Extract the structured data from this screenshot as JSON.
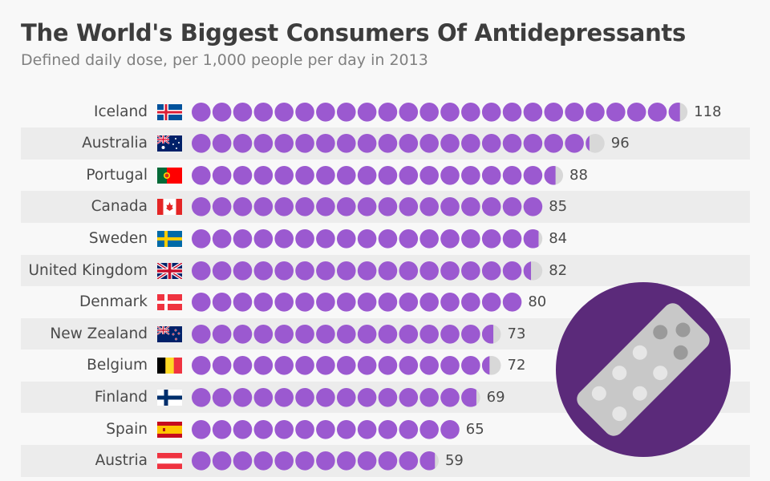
{
  "header": {
    "title": "The World's Biggest Consumers Of Antidepressants",
    "subtitle": "Defined daily dose, per 1,000 people per day in 2013"
  },
  "colors": {
    "dot": "#9b59d0",
    "dot_empty": "#d8d8d8",
    "badge": "#5b2a7a",
    "blister": "#c8c8c8",
    "row_shade": "#ececec"
  },
  "chart_data": {
    "type": "pictogram-bar",
    "title": "The World's Biggest Consumers Of Antidepressants",
    "subtitle": "Defined daily dose, per 1,000 people per day in 2013",
    "unit_per_icon": 5,
    "categories": [
      "Iceland",
      "Australia",
      "Portugal",
      "Canada",
      "Sweden",
      "United Kingdom",
      "Denmark",
      "New Zealand",
      "Belgium",
      "Finland",
      "Spain",
      "Austria"
    ],
    "values": [
      118,
      96,
      88,
      85,
      84,
      82,
      80,
      73,
      72,
      69,
      65,
      59
    ],
    "value_labels": [
      "118",
      "96",
      "88",
      "85",
      "84",
      "82",
      "80",
      "73",
      "72",
      "69",
      "65",
      "59"
    ],
    "flags": [
      "iceland-flag",
      "australia-flag",
      "portugal-flag",
      "canada-flag",
      "sweden-flag",
      "uk-flag",
      "denmark-flag",
      "new-zealand-flag",
      "belgium-flag",
      "finland-flag",
      "spain-flag",
      "austria-flag"
    ]
  },
  "decor": {
    "icon": "pill-blister-icon"
  }
}
